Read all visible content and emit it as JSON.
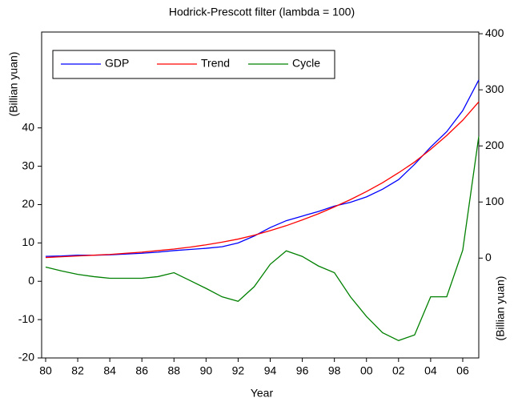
{
  "chart_data": {
    "type": "line",
    "title": "Hodrick-Prescott filter (lambda = 100)",
    "x_label": "Year",
    "y_label": "(Billian yuan)",
    "y2_label": "(Billian yuan)",
    "x": [
      1980,
      1981,
      1982,
      1983,
      1984,
      1985,
      1986,
      1987,
      1988,
      1989,
      1990,
      1991,
      1992,
      1993,
      1994,
      1995,
      1996,
      1997,
      1998,
      1999,
      2000,
      2001,
      2002,
      2003,
      2004,
      2005,
      2006,
      2007
    ],
    "series": [
      {
        "name": "GDP",
        "color": "#0000ff",
        "values": [
          6.5,
          6.6,
          6.8,
          6.8,
          6.9,
          7.1,
          7.3,
          7.6,
          8.0,
          8.3,
          8.6,
          9.0,
          10.0,
          11.8,
          14.0,
          15.8,
          17.0,
          18.2,
          19.6,
          20.6,
          22.0,
          24.0,
          26.5,
          30.5,
          35.0,
          39.0,
          44.5,
          52.5
        ]
      },
      {
        "name": "Trend",
        "color": "#ff0000",
        "values": [
          6.2,
          6.4,
          6.6,
          6.8,
          7.0,
          7.3,
          7.6,
          8.0,
          8.4,
          8.9,
          9.5,
          10.2,
          11.0,
          12.0,
          13.2,
          14.5,
          16.0,
          17.6,
          19.4,
          21.3,
          23.4,
          25.7,
          28.3,
          31.1,
          34.4,
          38.0,
          42.0,
          46.8
        ]
      },
      {
        "name": "Cycle",
        "color": "#008000",
        "axis": "y2",
        "values": [
          -16,
          -23,
          -29,
          -33,
          -36,
          -36,
          -36,
          -33,
          -26,
          -40,
          -54,
          -69,
          -77,
          -51,
          -11,
          13,
          3,
          -14,
          -26,
          -69,
          -104,
          -133,
          -147,
          -137,
          -69,
          -69,
          14,
          217
        ]
      }
    ],
    "xlim": [
      1980,
      2007
    ],
    "xticks": [
      {
        "value": 1980,
        "label": "80"
      },
      {
        "value": 1982,
        "label": "82"
      },
      {
        "value": 1984,
        "label": "84"
      },
      {
        "value": 1986,
        "label": "86"
      },
      {
        "value": 1988,
        "label": "88"
      },
      {
        "value": 1990,
        "label": "90"
      },
      {
        "value": 1992,
        "label": "92"
      },
      {
        "value": 1994,
        "label": "94"
      },
      {
        "value": 1996,
        "label": "96"
      },
      {
        "value": 1998,
        "label": "98"
      },
      {
        "value": 2000,
        "label": "00"
      },
      {
        "value": 2002,
        "label": "02"
      },
      {
        "value": 2004,
        "label": "04"
      },
      {
        "value": 2006,
        "label": "06"
      }
    ],
    "ylim": [
      -20,
      65
    ],
    "yticks": [
      -20,
      -10,
      0,
      10,
      20,
      30,
      40
    ],
    "y2lim": [
      -178,
      403
    ],
    "y2ticks": [
      0,
      100,
      200,
      300,
      400
    ],
    "legend": "top-left"
  }
}
